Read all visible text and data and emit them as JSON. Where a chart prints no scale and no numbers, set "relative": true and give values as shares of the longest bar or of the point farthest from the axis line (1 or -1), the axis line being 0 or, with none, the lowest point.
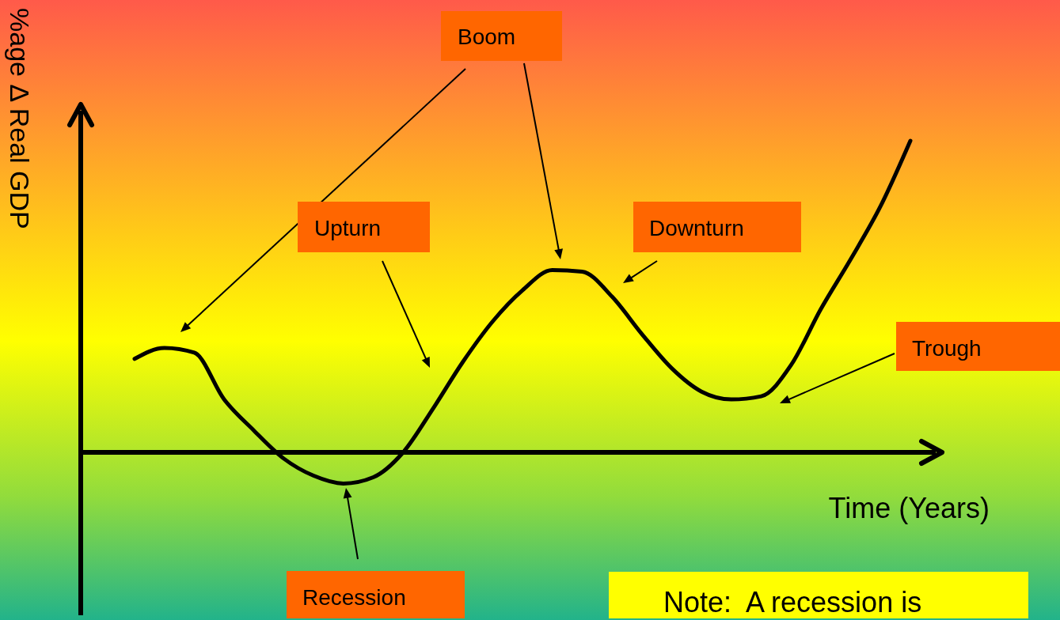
{
  "chart_data": {
    "type": "line",
    "relative": true,
    "xlabel": "Time (Years)",
    "ylabel": "%age Δ Real GDP",
    "categories": [
      null,
      null,
      null,
      null,
      null,
      null,
      null,
      null,
      null,
      null,
      null,
      null,
      null,
      null,
      null,
      null,
      null,
      null,
      null,
      null,
      null,
      null,
      null,
      null,
      null,
      null,
      null
    ],
    "series": [
      {
        "color": "#000000",
        "values": [
          0.3,
          0.335,
          0.32,
          0.17,
          0.07,
          -0.02,
          -0.075,
          -0.1,
          -0.08,
          0.0,
          0.14,
          0.29,
          0.42,
          0.52,
          0.585,
          0.58,
          0.5,
          0.38,
          0.27,
          0.195,
          0.17,
          0.18,
          0.28,
          0.46,
          0.62,
          0.79,
          1.0
        ]
      }
    ],
    "annotations": [
      "Boom",
      "Upturn",
      "Downturn",
      "Trough",
      "Recession",
      "Note:  A recession is"
    ],
    "line_style": "solid"
  }
}
